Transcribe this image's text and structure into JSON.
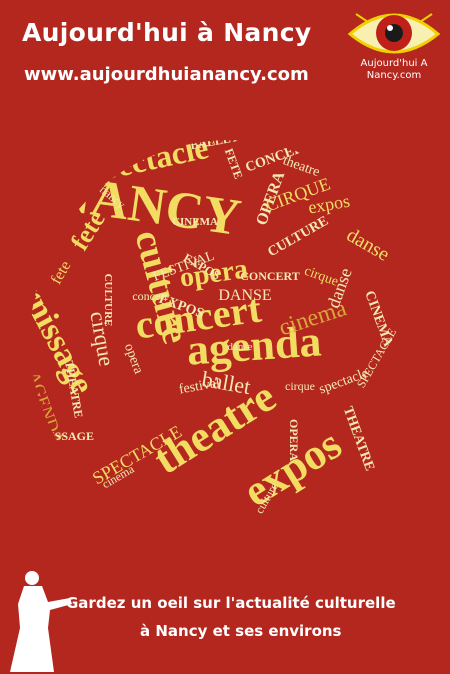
{
  "header": {
    "title": "Aujourd'hui à Nancy",
    "url": "www.aujourdhuianancy.com"
  },
  "logo": {
    "line1": "Aujourd'hui A",
    "line2": "Nancy.com",
    "icon": "eye-icon"
  },
  "cloud": {
    "words": [
      "NANCY",
      "agenda",
      "concert",
      "culture",
      "theatre",
      "expos",
      "spectacle",
      "vernissage",
      "festival",
      "opera",
      "fete",
      "cinema",
      "cirque",
      "ballet",
      "danse",
      "CULTURE",
      "FETE",
      "OPERA",
      "CINEMA",
      "THEATRE",
      "EXPOS",
      "VERNISSAGE",
      "BALLET",
      "CONCERT",
      "SPECTACLE",
      "DANSE",
      "FESTIVAL",
      "CIRQUE",
      "AGENDA",
      "nancy"
    ]
  },
  "tagline": {
    "line1": "Gardez un oeil sur l'actualité culturelle",
    "line2": "à Nancy et ses environs"
  },
  "colors": {
    "background": "#b3271f",
    "word_yellow": "#f2dc62",
    "word_gold": "#d9a63a",
    "word_pale": "#f4e9b0"
  }
}
